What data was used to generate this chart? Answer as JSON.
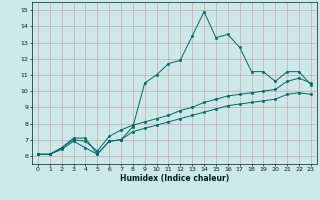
{
  "xlabel": "Humidex (Indice chaleur)",
  "background_color": "#cce8e8",
  "grid_color": "#c8a8a8",
  "line_color": "#006868",
  "xlim": [
    -0.5,
    23.5
  ],
  "ylim": [
    5.5,
    15.5
  ],
  "xticks": [
    0,
    1,
    2,
    3,
    4,
    5,
    6,
    7,
    8,
    9,
    10,
    11,
    12,
    13,
    14,
    15,
    16,
    17,
    18,
    19,
    20,
    21,
    22,
    23
  ],
  "yticks": [
    6,
    7,
    8,
    9,
    10,
    11,
    12,
    13,
    14,
    15
  ],
  "series": {
    "max": {
      "x": [
        0,
        1,
        2,
        3,
        4,
        5,
        6,
        7,
        8,
        9,
        10,
        11,
        12,
        13,
        14,
        15,
        16,
        17,
        18,
        19,
        20,
        21,
        22,
        23
      ],
      "y": [
        6.1,
        6.1,
        6.5,
        7.1,
        7.1,
        6.1,
        6.9,
        7.0,
        7.8,
        10.5,
        11.0,
        11.7,
        11.9,
        13.4,
        14.9,
        13.3,
        13.5,
        12.7,
        11.2,
        11.2,
        10.6,
        11.2,
        11.2,
        10.4
      ]
    },
    "mean": {
      "x": [
        0,
        1,
        2,
        3,
        4,
        5,
        6,
        7,
        8,
        9,
        10,
        11,
        12,
        13,
        14,
        15,
        16,
        17,
        18,
        19,
        20,
        21,
        22,
        23
      ],
      "y": [
        6.1,
        6.1,
        6.5,
        7.0,
        6.9,
        6.3,
        7.2,
        7.6,
        7.9,
        8.1,
        8.3,
        8.5,
        8.8,
        9.0,
        9.3,
        9.5,
        9.7,
        9.8,
        9.9,
        10.0,
        10.1,
        10.6,
        10.8,
        10.5
      ]
    },
    "min": {
      "x": [
        0,
        1,
        2,
        3,
        4,
        5,
        6,
        7,
        8,
        9,
        10,
        11,
        12,
        13,
        14,
        15,
        16,
        17,
        18,
        19,
        20,
        21,
        22,
        23
      ],
      "y": [
        6.1,
        6.1,
        6.4,
        6.9,
        6.5,
        6.1,
        6.9,
        7.0,
        7.5,
        7.7,
        7.9,
        8.1,
        8.3,
        8.5,
        8.7,
        8.9,
        9.1,
        9.2,
        9.3,
        9.4,
        9.5,
        9.8,
        9.9,
        9.8
      ]
    }
  }
}
